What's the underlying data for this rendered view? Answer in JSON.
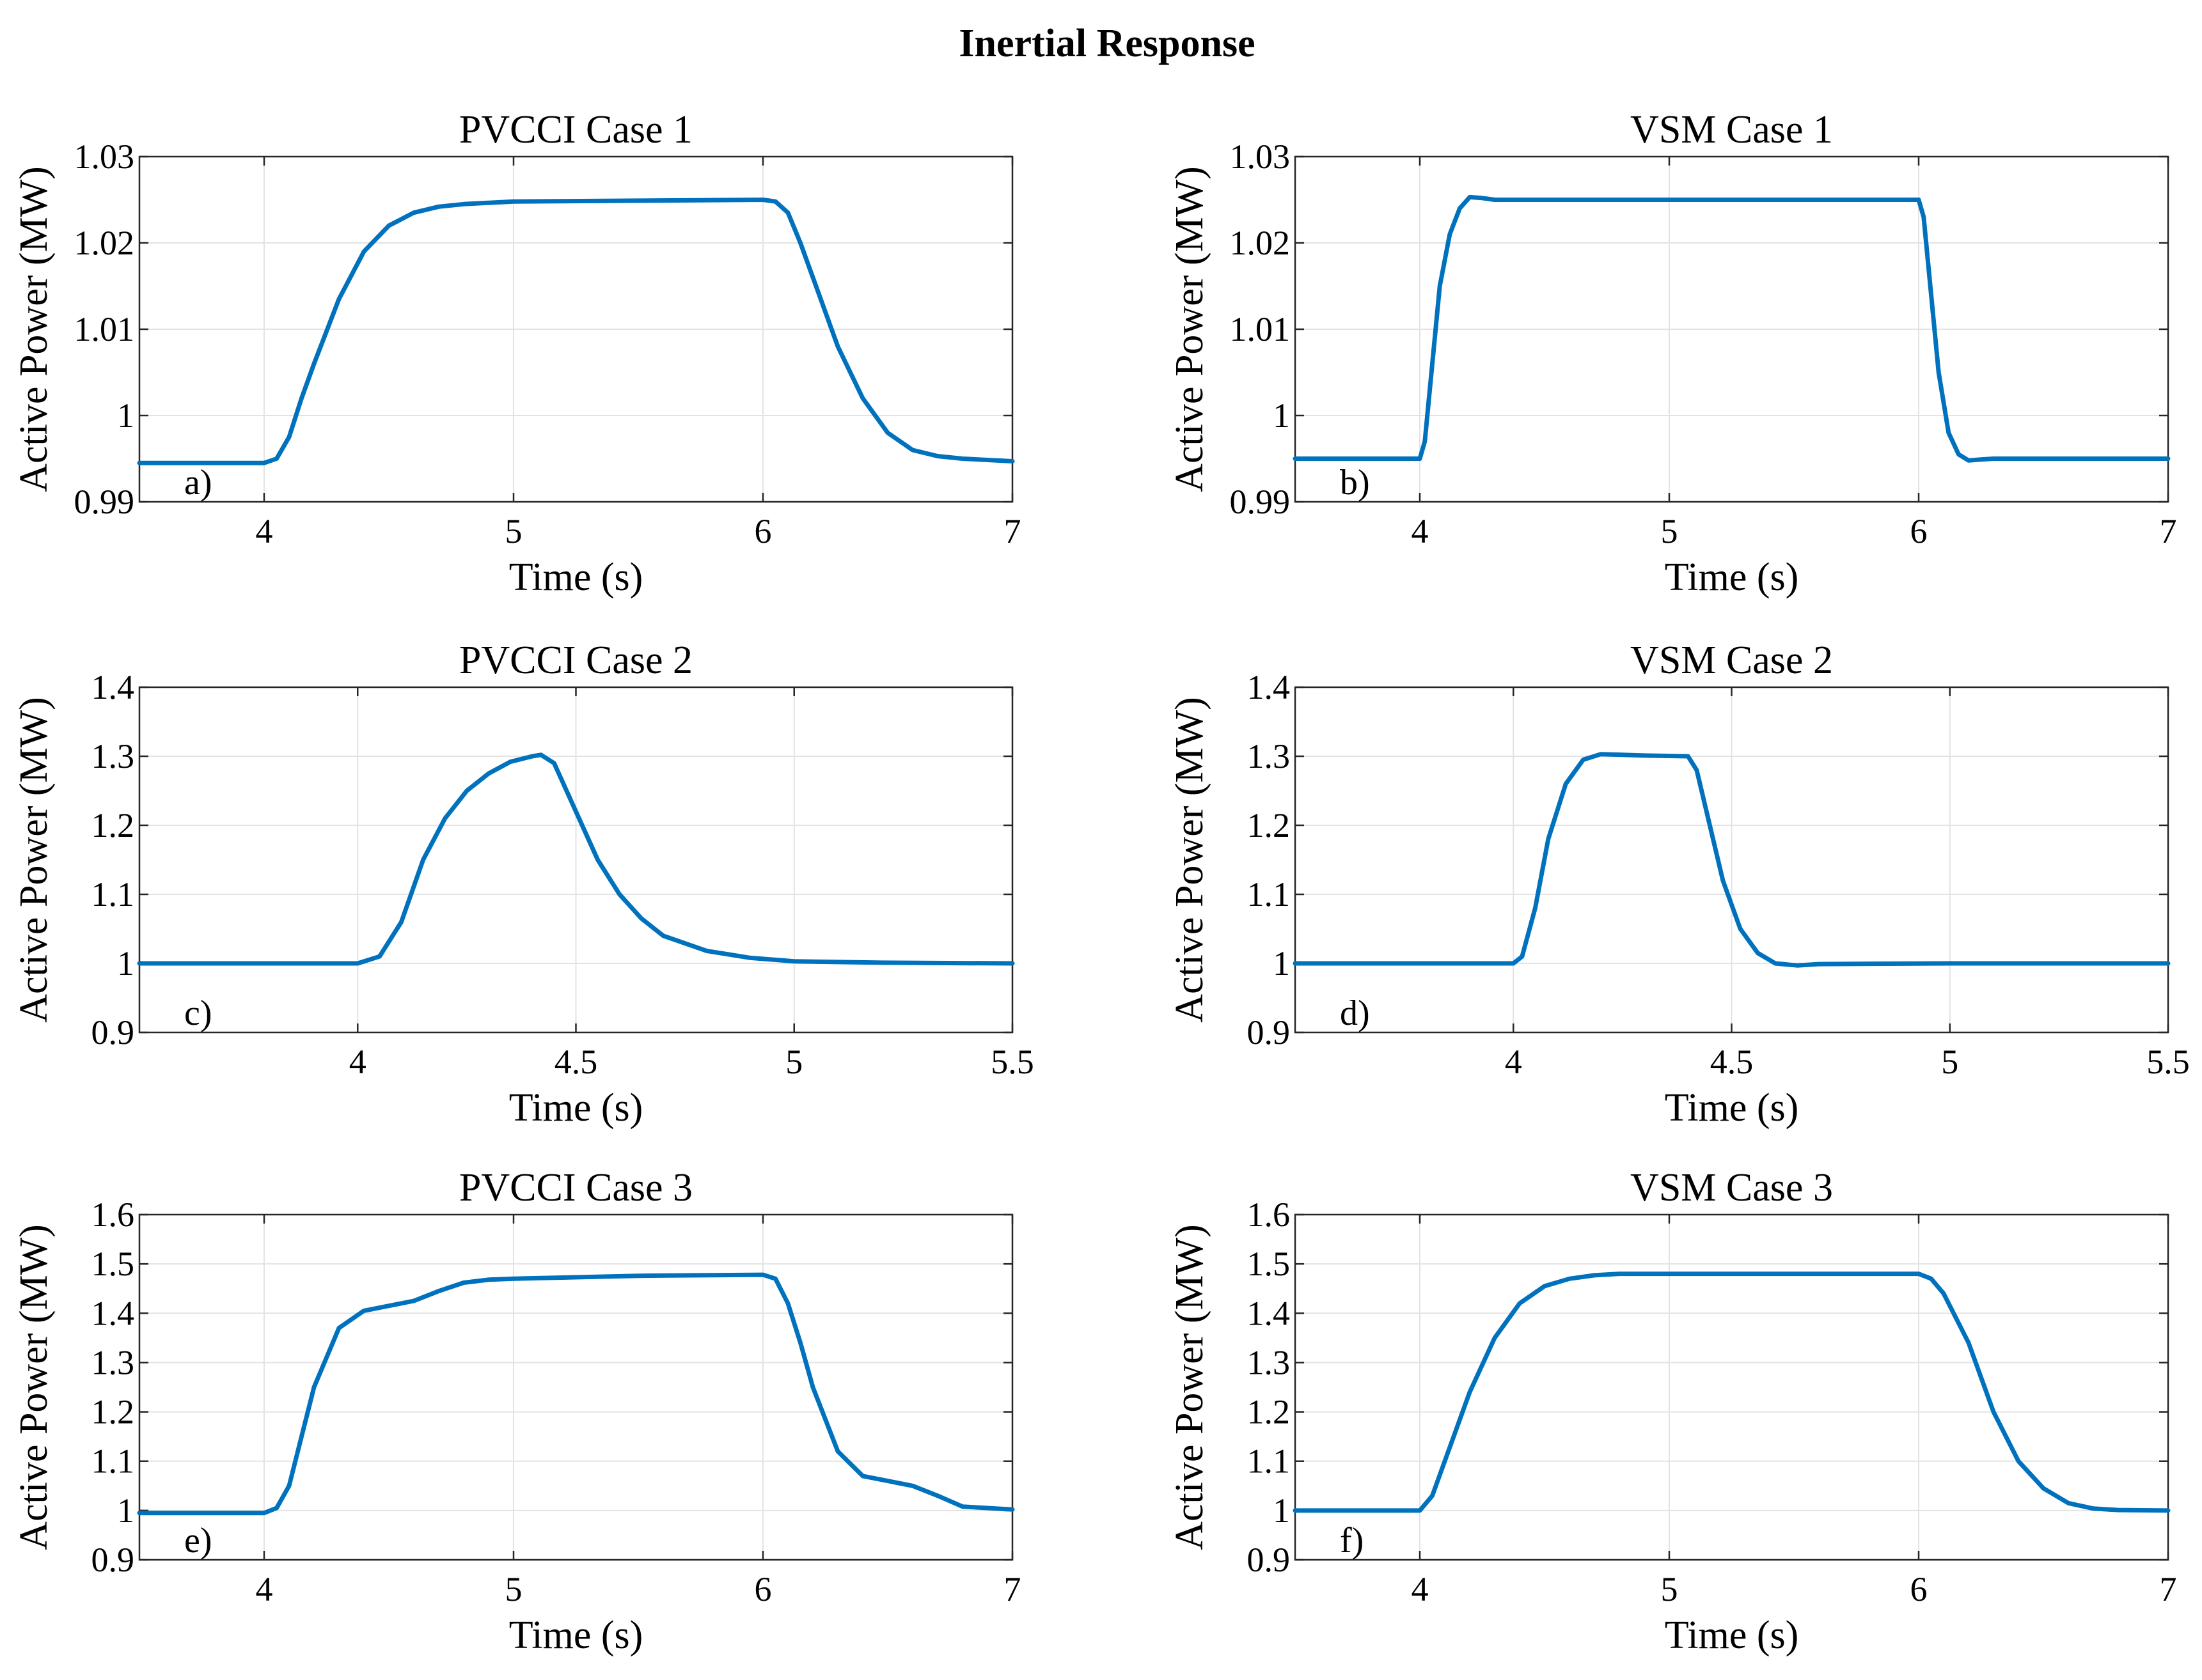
{
  "figure_title": "Inertial Response",
  "colors": {
    "line": "#0072BD"
  },
  "chart_data": [
    {
      "type": "line",
      "title": "PVCCI Case 1",
      "panel_label": "a)",
      "xlabel": "Time (s)",
      "ylabel": "Active Power (MW)",
      "xlim": [
        3.5,
        7
      ],
      "ylim": [
        0.99,
        1.03
      ],
      "xticks": [
        4,
        5,
        6,
        7
      ],
      "yticks": [
        0.99,
        1,
        1.01,
        1.02,
        1.03
      ],
      "xticklabels": [
        "4",
        "5",
        "6",
        "7"
      ],
      "yticklabels": [
        "0.99",
        "1",
        "1.01",
        "1.02",
        "1.03"
      ],
      "grid": true,
      "series": [
        {
          "name": "Active Power",
          "x": [
            3.5,
            4.0,
            4.05,
            4.1,
            4.15,
            4.2,
            4.3,
            4.4,
            4.5,
            4.6,
            4.7,
            4.8,
            5.0,
            5.5,
            6.0,
            6.05,
            6.1,
            6.15,
            6.2,
            6.3,
            6.4,
            6.5,
            6.6,
            6.7,
            6.8,
            7.0
          ],
          "y": [
            0.9945,
            0.9945,
            0.995,
            0.9975,
            1.002,
            1.006,
            1.0135,
            1.019,
            1.022,
            1.0235,
            1.0242,
            1.0245,
            1.0248,
            1.0249,
            1.025,
            1.0248,
            1.0235,
            1.02,
            1.016,
            1.008,
            1.002,
            0.998,
            0.996,
            0.9953,
            0.995,
            0.9947
          ]
        }
      ]
    },
    {
      "type": "line",
      "title": "VSM Case 1",
      "panel_label": "b)",
      "xlabel": "Time (s)",
      "ylabel": "Active Power (MW)",
      "xlim": [
        3.5,
        7
      ],
      "ylim": [
        0.99,
        1.03
      ],
      "xticks": [
        4,
        5,
        6,
        7
      ],
      "yticks": [
        0.99,
        1,
        1.01,
        1.02,
        1.03
      ],
      "xticklabels": [
        "4",
        "5",
        "6",
        "7"
      ],
      "yticklabels": [
        "0.99",
        "1",
        "1.01",
        "1.02",
        "1.03"
      ],
      "grid": true,
      "series": [
        {
          "name": "Active Power",
          "x": [
            3.5,
            4.0,
            4.02,
            4.05,
            4.08,
            4.12,
            4.16,
            4.2,
            4.25,
            4.3,
            4.5,
            5.0,
            5.5,
            6.0,
            6.02,
            6.05,
            6.08,
            6.12,
            6.16,
            6.2,
            6.25,
            6.3,
            6.5,
            7.0
          ],
          "y": [
            0.995,
            0.995,
            0.997,
            1.006,
            1.015,
            1.021,
            1.024,
            1.0253,
            1.0252,
            1.025,
            1.025,
            1.025,
            1.025,
            1.025,
            1.023,
            1.014,
            1.005,
            0.998,
            0.9955,
            0.9948,
            0.9949,
            0.995,
            0.995,
            0.995
          ]
        }
      ]
    },
    {
      "type": "line",
      "title": "PVCCI Case 2",
      "panel_label": "c)",
      "xlabel": "Time (s)",
      "ylabel": "Active Power (MW)",
      "xlim": [
        3.5,
        5.5
      ],
      "ylim": [
        0.9,
        1.4
      ],
      "xticks": [
        4,
        4.5,
        5,
        5.5
      ],
      "yticks": [
        0.9,
        1,
        1.1,
        1.2,
        1.3,
        1.4
      ],
      "xticklabels": [
        "4",
        "4.5",
        "5",
        "5.5"
      ],
      "yticklabels": [
        "0.9",
        "1",
        "1.1",
        "1.2",
        "1.3",
        "1.4"
      ],
      "grid": true,
      "series": [
        {
          "name": "Active Power",
          "x": [
            3.5,
            4.0,
            4.05,
            4.1,
            4.15,
            4.2,
            4.25,
            4.3,
            4.35,
            4.4,
            4.42,
            4.45,
            4.5,
            4.55,
            4.6,
            4.65,
            4.7,
            4.8,
            4.9,
            5.0,
            5.2,
            5.5
          ],
          "y": [
            1.0,
            1.0,
            1.01,
            1.06,
            1.15,
            1.21,
            1.25,
            1.275,
            1.292,
            1.3,
            1.302,
            1.29,
            1.22,
            1.15,
            1.1,
            1.065,
            1.04,
            1.018,
            1.008,
            1.003,
            1.001,
            1.0
          ]
        }
      ]
    },
    {
      "type": "line",
      "title": "VSM Case 2",
      "panel_label": "d)",
      "xlabel": "Time (s)",
      "ylabel": "Active Power (MW)",
      "xlim": [
        3.5,
        5.5
      ],
      "ylim": [
        0.9,
        1.4
      ],
      "xticks": [
        4,
        4.5,
        5,
        5.5
      ],
      "yticks": [
        0.9,
        1,
        1.1,
        1.2,
        1.3,
        1.4
      ],
      "xticklabels": [
        "4",
        "4.5",
        "5",
        "5.5"
      ],
      "yticklabels": [
        "0.9",
        "1",
        "1.1",
        "1.2",
        "1.3",
        "1.4"
      ],
      "grid": true,
      "series": [
        {
          "name": "Active Power",
          "x": [
            3.5,
            4.0,
            4.02,
            4.05,
            4.08,
            4.12,
            4.16,
            4.2,
            4.25,
            4.3,
            4.4,
            4.42,
            4.45,
            4.48,
            4.52,
            4.56,
            4.6,
            4.65,
            4.7,
            5.0,
            5.5
          ],
          "y": [
            1.0,
            1.0,
            1.01,
            1.08,
            1.18,
            1.26,
            1.295,
            1.303,
            1.302,
            1.301,
            1.3,
            1.28,
            1.2,
            1.12,
            1.05,
            1.015,
            1.0,
            0.997,
            0.999,
            1.0,
            1.0
          ]
        }
      ]
    },
    {
      "type": "line",
      "title": "PVCCI Case 3",
      "panel_label": "e)",
      "xlabel": "Time (s)",
      "ylabel": "Active Power (MW)",
      "xlim": [
        3.5,
        7
      ],
      "ylim": [
        0.9,
        1.6
      ],
      "xticks": [
        4,
        5,
        6,
        7
      ],
      "yticks": [
        0.9,
        1,
        1.1,
        1.2,
        1.3,
        1.4,
        1.5,
        1.6
      ],
      "xticklabels": [
        "4",
        "5",
        "6",
        "7"
      ],
      "yticklabels": [
        "0.9",
        "1",
        "1.1",
        "1.2",
        "1.3",
        "1.4",
        "1.5",
        "1.6"
      ],
      "grid": true,
      "series": [
        {
          "name": "Active Power",
          "x": [
            3.5,
            4.0,
            4.05,
            4.1,
            4.15,
            4.2,
            4.3,
            4.4,
            4.5,
            4.6,
            4.7,
            4.8,
            4.9,
            5.0,
            5.5,
            6.0,
            6.05,
            6.1,
            6.15,
            6.2,
            6.3,
            6.4,
            6.5,
            6.6,
            6.7,
            6.8,
            7.0
          ],
          "y": [
            0.995,
            0.995,
            1.005,
            1.05,
            1.15,
            1.25,
            1.37,
            1.405,
            1.415,
            1.425,
            1.445,
            1.462,
            1.468,
            1.47,
            1.476,
            1.478,
            1.47,
            1.42,
            1.34,
            1.25,
            1.12,
            1.07,
            1.06,
            1.05,
            1.03,
            1.008,
            1.002
          ]
        }
      ]
    },
    {
      "type": "line",
      "title": "VSM Case 3",
      "panel_label": "f)",
      "xlabel": "Time (s)",
      "ylabel": "Active Power (MW)",
      "xlim": [
        3.5,
        7
      ],
      "ylim": [
        0.9,
        1.6
      ],
      "xticks": [
        4,
        5,
        6,
        7
      ],
      "yticks": [
        0.9,
        1,
        1.1,
        1.2,
        1.3,
        1.4,
        1.5,
        1.6
      ],
      "xticklabels": [
        "4",
        "5",
        "6",
        "7"
      ],
      "yticklabels": [
        "0.9",
        "1",
        "1.1",
        "1.2",
        "1.3",
        "1.4",
        "1.5",
        "1.6"
      ],
      "grid": true,
      "series": [
        {
          "name": "Active Power",
          "x": [
            3.5,
            4.0,
            4.05,
            4.1,
            4.2,
            4.3,
            4.4,
            4.5,
            4.6,
            4.7,
            4.8,
            5.0,
            5.5,
            6.0,
            6.05,
            6.1,
            6.2,
            6.3,
            6.4,
            6.5,
            6.6,
            6.7,
            6.8,
            7.0
          ],
          "y": [
            1.0,
            1.0,
            1.03,
            1.1,
            1.24,
            1.35,
            1.42,
            1.455,
            1.47,
            1.477,
            1.48,
            1.48,
            1.48,
            1.48,
            1.47,
            1.44,
            1.34,
            1.2,
            1.1,
            1.045,
            1.015,
            1.004,
            1.001,
            1.0
          ]
        }
      ]
    }
  ]
}
